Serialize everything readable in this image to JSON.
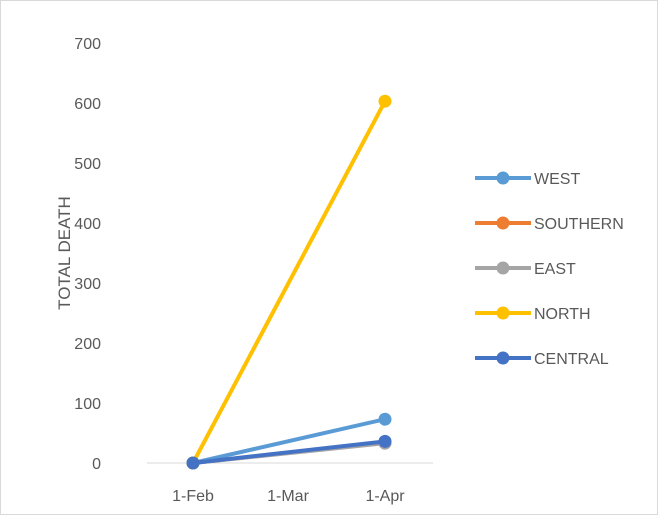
{
  "chart_data": {
    "type": "line",
    "title": "",
    "xlabel": "",
    "ylabel": "TOTAL DEATH",
    "categories": [
      "1-Feb",
      "1-Mar",
      "1-Apr"
    ],
    "ylim": [
      0,
      700
    ],
    "yticks": [
      0,
      100,
      200,
      300,
      400,
      500,
      600,
      700
    ],
    "grid": false,
    "legend_position": "right",
    "series": [
      {
        "name": "WEST",
        "color": "#5b9bd5",
        "points": [
          {
            "x": "1-Feb",
            "y": 0
          },
          {
            "x": "1-Apr",
            "y": 73
          }
        ]
      },
      {
        "name": "SOUTHERN",
        "color": "#ed7d31",
        "points": [
          {
            "x": "1-Feb",
            "y": 0
          },
          {
            "x": "1-Apr",
            "y": 34
          }
        ]
      },
      {
        "name": "EAST",
        "color": "#a5a5a5",
        "points": [
          {
            "x": "1-Feb",
            "y": 0
          },
          {
            "x": "1-Apr",
            "y": 33
          }
        ]
      },
      {
        "name": "NORTH",
        "color": "#ffc000",
        "points": [
          {
            "x": "1-Feb",
            "y": 0
          },
          {
            "x": "1-Apr",
            "y": 603
          }
        ]
      },
      {
        "name": "CENTRAL",
        "color": "#4472c4",
        "points": [
          {
            "x": "1-Feb",
            "y": 0
          },
          {
            "x": "1-Apr",
            "y": 36
          }
        ]
      }
    ]
  }
}
